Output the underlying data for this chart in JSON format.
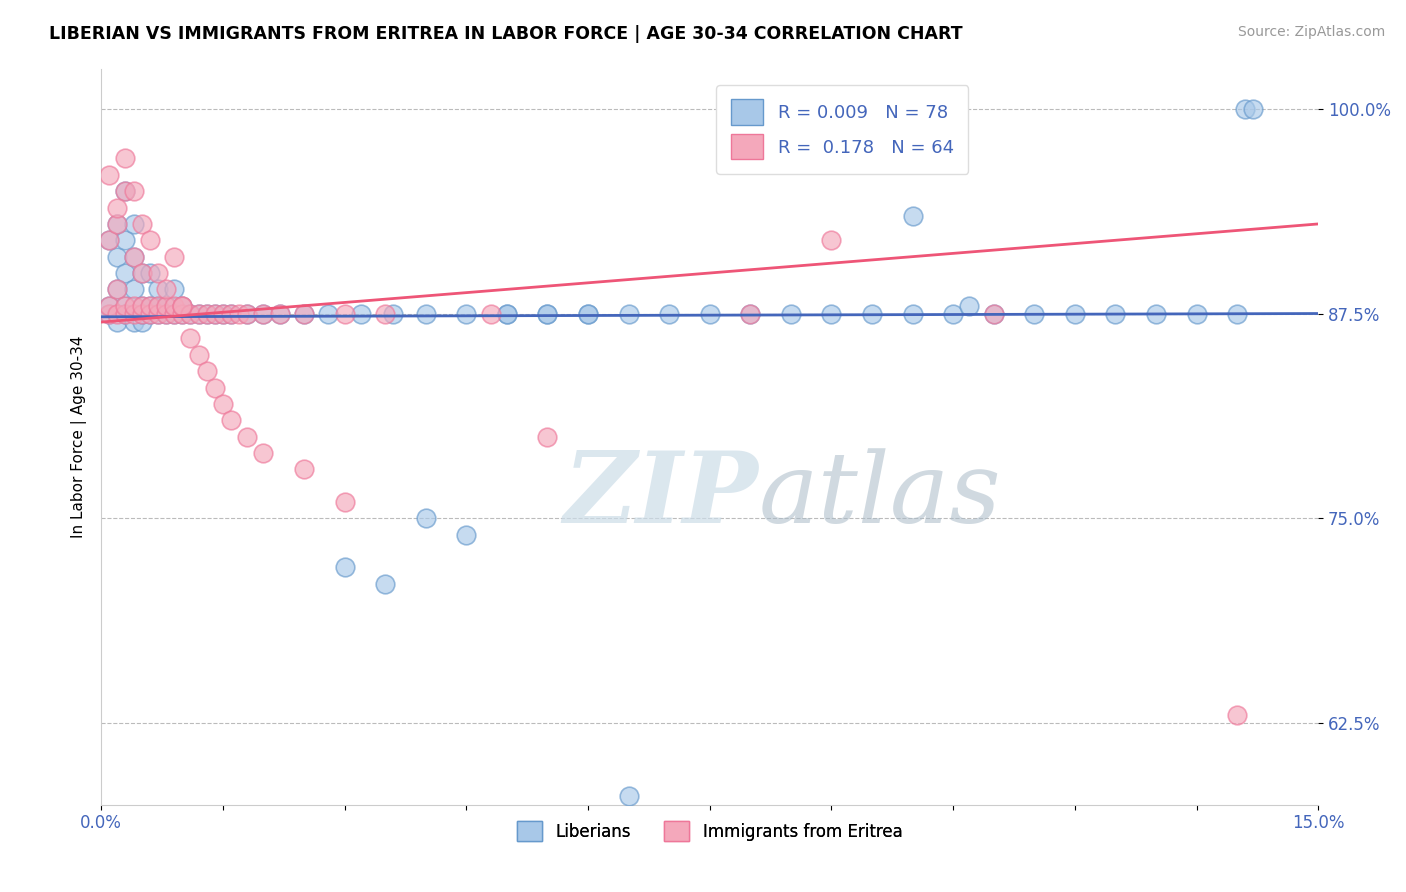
{
  "title": "LIBERIAN VS IMMIGRANTS FROM ERITREA IN LABOR FORCE | AGE 30-34 CORRELATION CHART",
  "source": "Source: ZipAtlas.com",
  "ylabel": "In Labor Force | Age 30-34",
  "xlim": [
    0.0,
    0.15
  ],
  "ylim": [
    0.575,
    1.025
  ],
  "yticks": [
    0.625,
    0.75,
    0.875,
    1.0
  ],
  "ytick_labels": [
    "62.5%",
    "75.0%",
    "87.5%",
    "100.0%"
  ],
  "xticks": [
    0.0,
    0.15
  ],
  "xtick_labels": [
    "0.0%",
    "15.0%"
  ],
  "blue_R": 0.009,
  "blue_N": 78,
  "pink_R": 0.178,
  "pink_N": 64,
  "blue_color": "#A8C8E8",
  "pink_color": "#F4A8BB",
  "blue_edge_color": "#6699CC",
  "pink_edge_color": "#EE7799",
  "blue_line_color": "#4466BB",
  "pink_line_color": "#EE5577",
  "legend_label_blue": "Liberians",
  "legend_label_pink": "Immigrants from Eritrea",
  "blue_x": [
    0.001,
    0.001,
    0.001,
    0.002,
    0.002,
    0.002,
    0.002,
    0.003,
    0.003,
    0.003,
    0.003,
    0.003,
    0.004,
    0.004,
    0.004,
    0.004,
    0.005,
    0.005,
    0.005,
    0.005,
    0.006,
    0.006,
    0.006,
    0.007,
    0.007,
    0.007,
    0.008,
    0.008,
    0.009,
    0.009,
    0.01,
    0.01,
    0.011,
    0.012,
    0.013,
    0.014,
    0.015,
    0.016,
    0.018,
    0.02,
    0.022,
    0.025,
    0.028,
    0.032,
    0.036,
    0.04,
    0.045,
    0.05,
    0.055,
    0.06,
    0.065,
    0.07,
    0.075,
    0.08,
    0.085,
    0.09,
    0.095,
    0.1,
    0.105,
    0.11,
    0.115,
    0.12,
    0.125,
    0.13,
    0.135,
    0.14,
    0.141,
    0.142,
    0.1,
    0.107,
    0.05,
    0.055,
    0.03,
    0.035,
    0.04,
    0.045,
    0.06,
    0.065
  ],
  "blue_y": [
    0.875,
    0.88,
    0.92,
    0.87,
    0.89,
    0.91,
    0.93,
    0.875,
    0.88,
    0.9,
    0.92,
    0.95,
    0.87,
    0.89,
    0.91,
    0.93,
    0.87,
    0.875,
    0.88,
    0.9,
    0.875,
    0.88,
    0.9,
    0.875,
    0.88,
    0.89,
    0.875,
    0.88,
    0.875,
    0.89,
    0.875,
    0.88,
    0.875,
    0.875,
    0.875,
    0.875,
    0.875,
    0.875,
    0.875,
    0.875,
    0.875,
    0.875,
    0.875,
    0.875,
    0.875,
    0.875,
    0.875,
    0.875,
    0.875,
    0.875,
    0.875,
    0.875,
    0.875,
    0.875,
    0.875,
    0.875,
    0.875,
    0.875,
    0.875,
    0.875,
    0.875,
    0.875,
    0.875,
    0.875,
    0.875,
    0.875,
    1.0,
    1.0,
    0.935,
    0.88,
    0.875,
    0.875,
    0.72,
    0.71,
    0.75,
    0.74,
    0.875,
    0.58
  ],
  "pink_x": [
    0.001,
    0.001,
    0.001,
    0.002,
    0.002,
    0.002,
    0.003,
    0.003,
    0.003,
    0.004,
    0.004,
    0.004,
    0.005,
    0.005,
    0.005,
    0.006,
    0.006,
    0.007,
    0.007,
    0.008,
    0.008,
    0.009,
    0.009,
    0.01,
    0.01,
    0.011,
    0.012,
    0.013,
    0.014,
    0.015,
    0.016,
    0.017,
    0.018,
    0.02,
    0.022,
    0.025,
    0.03,
    0.035,
    0.001,
    0.002,
    0.003,
    0.004,
    0.005,
    0.006,
    0.007,
    0.008,
    0.009,
    0.01,
    0.011,
    0.012,
    0.013,
    0.014,
    0.015,
    0.016,
    0.018,
    0.02,
    0.025,
    0.03,
    0.048,
    0.055,
    0.08,
    0.09,
    0.11,
    0.14
  ],
  "pink_y": [
    0.875,
    0.88,
    0.92,
    0.875,
    0.89,
    0.93,
    0.875,
    0.88,
    0.95,
    0.875,
    0.88,
    0.91,
    0.875,
    0.88,
    0.9,
    0.875,
    0.88,
    0.875,
    0.88,
    0.875,
    0.88,
    0.875,
    0.88,
    0.875,
    0.88,
    0.875,
    0.875,
    0.875,
    0.875,
    0.875,
    0.875,
    0.875,
    0.875,
    0.875,
    0.875,
    0.875,
    0.875,
    0.875,
    0.96,
    0.94,
    0.97,
    0.95,
    0.93,
    0.92,
    0.9,
    0.89,
    0.91,
    0.88,
    0.86,
    0.85,
    0.84,
    0.83,
    0.82,
    0.81,
    0.8,
    0.79,
    0.78,
    0.76,
    0.875,
    0.8,
    0.875,
    0.92,
    0.875,
    0.63
  ]
}
